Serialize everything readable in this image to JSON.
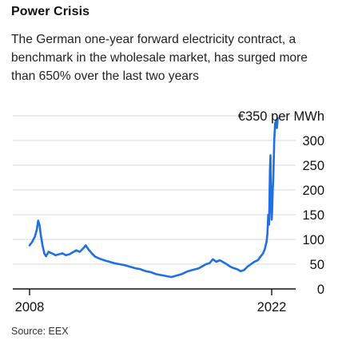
{
  "title": "Power Crisis",
  "subtitle": "The German one-year forward electricity contract, a benchmark in the wholesale market, has surged more than 650% over the last two years",
  "source": "Source: EEX",
  "colors": {
    "line": "#1f6fe5",
    "grid": "#d9d9d9",
    "axis": "#111111",
    "text": "#111111"
  },
  "chart_data": {
    "type": "line",
    "title": "",
    "xlabel": "",
    "ylabel": "",
    "y_unit_label": "€350 per MWh",
    "xlim": [
      2008,
      2022
    ],
    "ylim": [
      0,
      350
    ],
    "x_ticks": [
      2008,
      2022
    ],
    "y_ticks": [
      0,
      50,
      100,
      150,
      200,
      250,
      300,
      350
    ],
    "grid": true,
    "legend": "none",
    "series": [
      {
        "name": "",
        "x": [
          2008.0,
          2008.15,
          2008.3,
          2008.42,
          2008.5,
          2008.58,
          2008.65,
          2008.75,
          2008.85,
          2008.95,
          2009.1,
          2009.3,
          2009.5,
          2009.7,
          2009.9,
          2010.1,
          2010.3,
          2010.5,
          2010.7,
          2010.9,
          2011.1,
          2011.25,
          2011.4,
          2011.6,
          2011.8,
          2012.0,
          2012.3,
          2012.6,
          2012.9,
          2013.2,
          2013.5,
          2013.8,
          2014.1,
          2014.4,
          2014.7,
          2015.0,
          2015.3,
          2015.6,
          2015.9,
          2016.2,
          2016.5,
          2016.8,
          2017.1,
          2017.4,
          2017.6,
          2017.8,
          2018.0,
          2018.2,
          2018.4,
          2018.6,
          2018.8,
          2019.0,
          2019.2,
          2019.4,
          2019.6,
          2019.8,
          2020.0,
          2020.2,
          2020.4,
          2020.6,
          2020.8,
          2021.0,
          2021.2,
          2021.35,
          2021.5,
          2021.6,
          2021.7,
          2021.75,
          2021.8,
          2021.85,
          2021.9,
          2021.93,
          2021.96,
          2022.0,
          2022.03,
          2022.06,
          2022.09,
          2022.12,
          2022.15,
          2022.2,
          2022.25,
          2022.3,
          2022.35
        ],
        "y": [
          88,
          95,
          105,
          120,
          138,
          128,
          108,
          88,
          72,
          66,
          75,
          72,
          68,
          70,
          72,
          68,
          70,
          74,
          78,
          75,
          82,
          88,
          80,
          72,
          65,
          62,
          58,
          55,
          52,
          50,
          48,
          45,
          42,
          40,
          36,
          34,
          30,
          28,
          26,
          24,
          27,
          30,
          35,
          38,
          40,
          42,
          46,
          50,
          52,
          60,
          55,
          58,
          54,
          50,
          45,
          42,
          40,
          36,
          38,
          45,
          50,
          55,
          58,
          65,
          72,
          80,
          95,
          110,
          150,
          130,
          240,
          270,
          180,
          140,
          160,
          200,
          220,
          260,
          300,
          335,
          340,
          325,
          345
        ]
      }
    ]
  }
}
